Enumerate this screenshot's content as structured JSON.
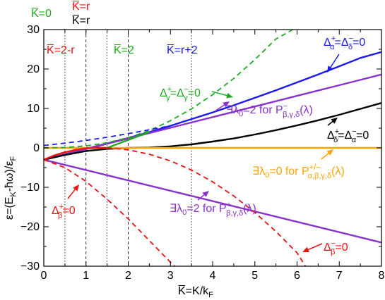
{
  "chart_data": {
    "type": "line",
    "xlim": [
      0,
      8
    ],
    "ylim": [
      -30,
      30
    ],
    "x_ticks": [
      "0",
      "1",
      "2",
      "3",
      "4",
      "5",
      "6",
      "7",
      "8"
    ],
    "y_ticks": [
      "-30",
      "-20",
      "-10",
      "0",
      "10",
      "20",
      "30"
    ],
    "xlabel": "K̅=K/kF",
    "ylabel": "ε=(EK-ħω)/εF",
    "vertical_lines": [
      {
        "x": 0.5,
        "style": "dotted"
      },
      {
        "x": 1.0,
        "style": "dashed"
      },
      {
        "x": 1.5,
        "style": "dotted"
      },
      {
        "x": 2.0,
        "style": "dashed"
      },
      {
        "x": 3.5,
        "style": "dotted"
      }
    ],
    "top_labels": [
      {
        "text": "K̅=0",
        "color": "#22aa22"
      },
      {
        "text": "K̅=r",
        "color": "#ee1111"
      },
      {
        "text": "K̅=r",
        "color": "#000000"
      }
    ],
    "region_labels": [
      {
        "text": "K̅=2-r",
        "color": "#ee1111"
      },
      {
        "text": "K̅=2",
        "color": "#22aa22"
      },
      {
        "text": "K̅=r+2",
        "color": "#1111ee"
      }
    ],
    "annotations": {
      "alpha_delta": "Δα+=Δδ-=0",
      "gamma": "Δγ+=Δγ-=0",
      "lambda_minus": "∃λ0=2 for Pβ,γ,δ-(λ)",
      "delta_alpha": "Δδ+=Δα-=0",
      "lambda_zero": "∃λ0=0 for Pα,β,γ,δ+/-(λ)",
      "beta_plus": "Δβ+=0",
      "lambda_plus": "∃λ0=2 for Pβ,γ,δ+(λ)",
      "beta_minus": "Δβ-=0"
    },
    "series": [
      {
        "color": "#1a1aee",
        "style": "solid",
        "x": [
          0.0,
          0.5,
          1.0,
          1.5,
          2.0,
          2.5,
          3.0,
          3.5,
          4.0,
          4.5,
          5.0,
          5.5,
          6.0,
          6.5,
          7.0,
          7.5,
          8.0
        ],
        "y": [
          -3.0,
          -1.6,
          -0.2,
          1.1,
          2.5,
          4.0,
          5.6,
          7.3,
          9.0,
          10.8,
          12.7,
          14.6,
          16.6,
          18.6,
          20.7,
          22.8,
          24.3
        ]
      },
      {
        "color": "#8833cc",
        "style": "solid",
        "x": [
          0.0,
          1.0,
          2.0,
          3.0,
          4.0,
          5.0,
          6.0,
          7.0,
          8.0
        ],
        "y": [
          -3.0,
          -0.3,
          2.4,
          5.1,
          7.8,
          10.5,
          13.2,
          15.9,
          18.6
        ]
      },
      {
        "color": "#000000",
        "style": "solid",
        "x": [
          0.0,
          0.5,
          1.0,
          1.5,
          2.0,
          2.5,
          3.0,
          3.5,
          4.0,
          4.5,
          5.0,
          5.5,
          6.0,
          6.5,
          7.0,
          7.5,
          8.0
        ],
        "y": [
          -3.0,
          -1.8,
          -0.8,
          -0.25,
          0.0,
          0.1,
          0.4,
          0.9,
          1.6,
          2.4,
          3.4,
          4.5,
          5.7,
          7.0,
          8.4,
          9.9,
          11.4
        ]
      },
      {
        "color": "#ffa500",
        "style": "solid",
        "x": [
          0.0,
          2.0,
          8.0
        ],
        "y": [
          0.0,
          0.0,
          0.0
        ]
      },
      {
        "color": "#8833cc",
        "style": "solid",
        "x": [
          0.0,
          8.0
        ],
        "y": [
          -3.0,
          -24.0
        ]
      },
      {
        "color": "#22aa22",
        "style": "dashed",
        "x": [
          0.0,
          0.5,
          1.0,
          1.5,
          2.0,
          2.5,
          3.0,
          3.5,
          4.0,
          4.5,
          5.0,
          5.5,
          5.9
        ],
        "y": [
          0.0,
          0.1,
          0.5,
          1.3,
          2.6,
          4.4,
          6.9,
          9.9,
          13.5,
          17.6,
          22.4,
          27.6,
          30.0
        ]
      },
      {
        "color": "#1a1aee",
        "style": "dashed",
        "x": [
          0.0,
          0.5,
          1.0,
          1.5,
          2.0,
          2.5,
          3.0
        ],
        "y": [
          0.6,
          1.2,
          1.9,
          2.7,
          3.6,
          4.6,
          5.6
        ]
      },
      {
        "color": "#ee1111",
        "style": "solid",
        "x": [
          0.0,
          0.25,
          0.5,
          0.75,
          1.0,
          1.25,
          1.5
        ],
        "y": [
          -3.0,
          -1.9,
          -1.1,
          -0.5,
          -0.1,
          0.05,
          0.0
        ]
      },
      {
        "color": "#22aa22",
        "style": "solid",
        "x": [
          1.5,
          2.0,
          2.5
        ],
        "y": [
          0.0,
          2.0,
          4.0
        ]
      },
      {
        "color": "#ee1111",
        "style": "dashed",
        "x": [
          0.0,
          0.5,
          1.0,
          1.5,
          2.0,
          2.5,
          3.0,
          3.1
        ],
        "y": [
          -3.0,
          -5.0,
          -8.5,
          -13.0,
          -18.0,
          -23.5,
          -29.0,
          -30.0
        ]
      },
      {
        "color": "#ee1111",
        "style": "dashed",
        "x": [
          1.5,
          2.0,
          2.5,
          3.0,
          3.5,
          4.0,
          4.5,
          5.0,
          5.5,
          6.0,
          6.2
        ],
        "y": [
          0.0,
          -0.5,
          -1.6,
          -3.3,
          -5.6,
          -8.6,
          -12.2,
          -16.4,
          -21.2,
          -26.6,
          -30.0
        ]
      }
    ]
  }
}
